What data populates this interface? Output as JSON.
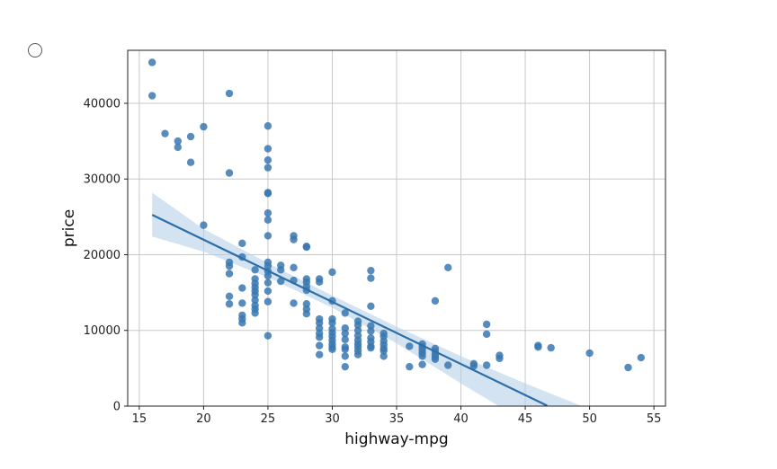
{
  "radio": {
    "icon": "radio-circle-icon"
  },
  "chart_data": {
    "type": "scatter",
    "title": "",
    "xlabel": "highway-mpg",
    "ylabel": "price",
    "xlim": [
      14.1,
      55.9
    ],
    "ylim": [
      0,
      47000
    ],
    "xticks": [
      15,
      20,
      25,
      30,
      35,
      40,
      45,
      50,
      55
    ],
    "yticks": [
      0,
      10000,
      20000,
      30000,
      40000
    ],
    "grid": true,
    "point_color": "#3a78b0",
    "line_color": "#2c6ea8",
    "ci_color": "#b6d0e8",
    "points": [
      [
        16,
        45400
      ],
      [
        16,
        41000
      ],
      [
        17,
        36000
      ],
      [
        18,
        35000
      ],
      [
        18,
        34200
      ],
      [
        19,
        35600
      ],
      [
        19,
        32200
      ],
      [
        20,
        36900
      ],
      [
        20,
        23900
      ],
      [
        22,
        41300
      ],
      [
        22,
        30800
      ],
      [
        22,
        19000
      ],
      [
        22,
        18500
      ],
      [
        22,
        17500
      ],
      [
        22,
        14500
      ],
      [
        22,
        13500
      ],
      [
        23,
        21500
      ],
      [
        23,
        19700
      ],
      [
        23,
        15600
      ],
      [
        23,
        13600
      ],
      [
        23,
        12000
      ],
      [
        23,
        11500
      ],
      [
        23,
        11000
      ],
      [
        24,
        18000
      ],
      [
        24,
        16800
      ],
      [
        24,
        16200
      ],
      [
        24,
        15700
      ],
      [
        24,
        15200
      ],
      [
        24,
        14700
      ],
      [
        24,
        14000
      ],
      [
        24,
        13300
      ],
      [
        24,
        12800
      ],
      [
        24,
        12300
      ],
      [
        25,
        37000
      ],
      [
        25,
        34000
      ],
      [
        25,
        32500
      ],
      [
        25,
        31500
      ],
      [
        25,
        28200
      ],
      [
        25,
        28100
      ],
      [
        25,
        25500
      ],
      [
        25,
        24600
      ],
      [
        25,
        22500
      ],
      [
        25,
        19000
      ],
      [
        25,
        18500
      ],
      [
        25,
        17800
      ],
      [
        25,
        17200
      ],
      [
        25,
        16300
      ],
      [
        25,
        15200
      ],
      [
        25,
        13800
      ],
      [
        25,
        9300
      ],
      [
        26,
        18600
      ],
      [
        26,
        18000
      ],
      [
        26,
        16500
      ],
      [
        27,
        22500
      ],
      [
        27,
        22000
      ],
      [
        27,
        18300
      ],
      [
        27,
        16600
      ],
      [
        27,
        13600
      ],
      [
        28,
        21100
      ],
      [
        28,
        21000
      ],
      [
        28,
        16800
      ],
      [
        28,
        16400
      ],
      [
        28,
        15800
      ],
      [
        28,
        15300
      ],
      [
        28,
        13500
      ],
      [
        28,
        12800
      ],
      [
        28,
        12200
      ],
      [
        29,
        16800
      ],
      [
        29,
        16400
      ],
      [
        29,
        11500
      ],
      [
        29,
        11000
      ],
      [
        29,
        10300
      ],
      [
        29,
        9600
      ],
      [
        29,
        9100
      ],
      [
        29,
        8000
      ],
      [
        29,
        6800
      ],
      [
        30,
        17700
      ],
      [
        30,
        13900
      ],
      [
        30,
        11500
      ],
      [
        30,
        11000
      ],
      [
        30,
        10200
      ],
      [
        30,
        9700
      ],
      [
        30,
        9200
      ],
      [
        30,
        8700
      ],
      [
        30,
        8200
      ],
      [
        30,
        7800
      ],
      [
        30,
        7500
      ],
      [
        31,
        12300
      ],
      [
        31,
        10300
      ],
      [
        31,
        9600
      ],
      [
        31,
        8800
      ],
      [
        31,
        7800
      ],
      [
        31,
        7500
      ],
      [
        31,
        6600
      ],
      [
        31,
        5200
      ],
      [
        32,
        11200
      ],
      [
        32,
        10700
      ],
      [
        32,
        10000
      ],
      [
        32,
        9300
      ],
      [
        32,
        8700
      ],
      [
        32,
        8200
      ],
      [
        32,
        7800
      ],
      [
        32,
        7300
      ],
      [
        32,
        6800
      ],
      [
        33,
        17900
      ],
      [
        33,
        16900
      ],
      [
        33,
        13200
      ],
      [
        33,
        10600
      ],
      [
        33,
        9900
      ],
      [
        33,
        9000
      ],
      [
        33,
        8500
      ],
      [
        33,
        7900
      ],
      [
        33,
        7700
      ],
      [
        34,
        9600
      ],
      [
        34,
        9200
      ],
      [
        34,
        8600
      ],
      [
        34,
        8100
      ],
      [
        34,
        7600
      ],
      [
        34,
        7300
      ],
      [
        34,
        6600
      ],
      [
        36,
        7900
      ],
      [
        36,
        5200
      ],
      [
        37,
        8200
      ],
      [
        37,
        7800
      ],
      [
        37,
        7400
      ],
      [
        37,
        7000
      ],
      [
        37,
        6600
      ],
      [
        37,
        5500
      ],
      [
        38,
        13900
      ],
      [
        38,
        7600
      ],
      [
        38,
        7200
      ],
      [
        38,
        6800
      ],
      [
        38,
        6500
      ],
      [
        38,
        6200
      ],
      [
        39,
        18300
      ],
      [
        39,
        5400
      ],
      [
        41,
        5600
      ],
      [
        41,
        5300
      ],
      [
        42,
        10800
      ],
      [
        42,
        9500
      ],
      [
        42,
        5400
      ],
      [
        43,
        6700
      ],
      [
        43,
        6300
      ],
      [
        46,
        8000
      ],
      [
        46,
        7800
      ],
      [
        47,
        7700
      ],
      [
        50,
        7000
      ],
      [
        53,
        5100
      ],
      [
        54,
        6400
      ]
    ],
    "regression": {
      "x_start": 16,
      "x_end": 46.7,
      "slope": -821,
      "intercept": 38400
    },
    "confidence_band": {
      "x": [
        16,
        20,
        25,
        30,
        35,
        40,
        45,
        50
      ],
      "upper": [
        28200,
        23400,
        18900,
        14600,
        10500,
        6600,
        3000,
        -400
      ],
      "lower": [
        22400,
        20400,
        17000,
        13000,
        8300,
        3000,
        -2100,
        -7200
      ]
    }
  }
}
